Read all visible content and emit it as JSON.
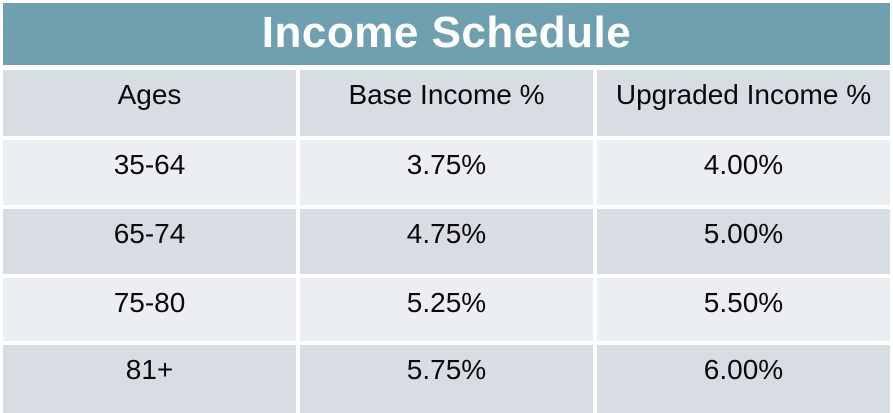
{
  "title": "Income Schedule",
  "colors": {
    "banner": "#6EA0AF",
    "row_dark": "#D8DDE3",
    "row_light": "#ECEFF2",
    "text": "#0A0A0A",
    "title_text": "#FFFFFF",
    "background": "#FFFFFF"
  },
  "chart_data": {
    "type": "table",
    "title": "Income Schedule",
    "columns": [
      "Ages",
      "Base Income %",
      "Upgraded Income %"
    ],
    "rows": [
      [
        "35-64",
        "3.75%",
        "4.00%"
      ],
      [
        "65-74",
        "4.75%",
        "5.00%"
      ],
      [
        "75-80",
        "5.25%",
        "5.50%"
      ],
      [
        "81+",
        "5.75%",
        "6.00%"
      ]
    ],
    "layout": {
      "header_shade": "dark",
      "row_shading": [
        "light",
        "dark",
        "light",
        "dark"
      ],
      "gridlines": "white-gaps",
      "last_row_clipped_at_bottom": true
    }
  }
}
